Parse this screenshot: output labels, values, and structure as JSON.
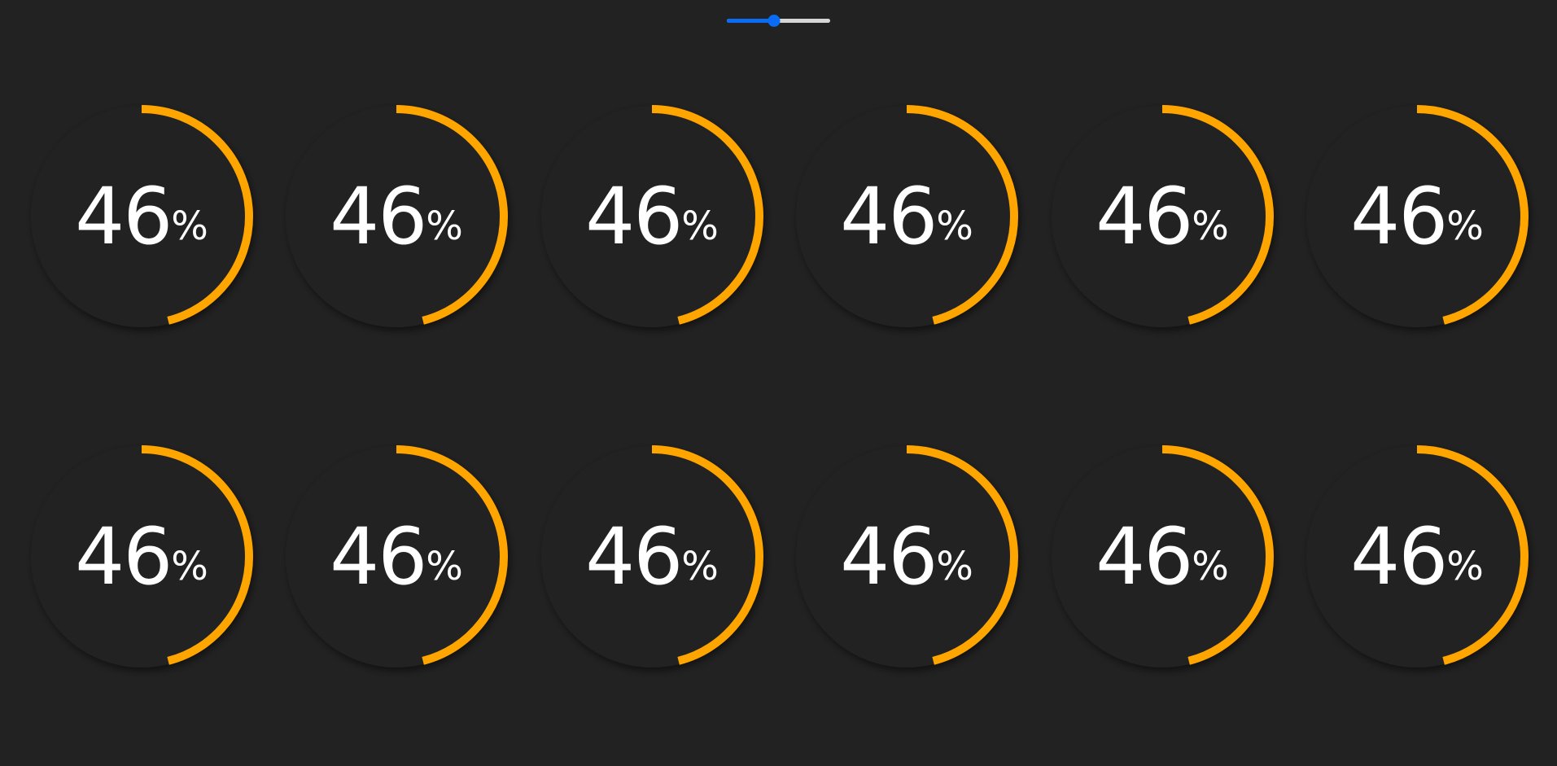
{
  "slider": {
    "value": 0.46
  },
  "colors": {
    "background": "#222222",
    "dial": "#222222",
    "arc": "#FFA500",
    "text": "#FFFFFF",
    "slider_fill": "#0A6CF5",
    "slider_track": "#D6D6D6"
  },
  "gauges": [
    {
      "value": 46,
      "value_text": "46",
      "unit": "%"
    },
    {
      "value": 46,
      "value_text": "46",
      "unit": "%"
    },
    {
      "value": 46,
      "value_text": "46",
      "unit": "%"
    },
    {
      "value": 46,
      "value_text": "46",
      "unit": "%"
    },
    {
      "value": 46,
      "value_text": "46",
      "unit": "%"
    },
    {
      "value": 46,
      "value_text": "46",
      "unit": "%"
    },
    {
      "value": 46,
      "value_text": "46",
      "unit": "%"
    },
    {
      "value": 46,
      "value_text": "46",
      "unit": "%"
    },
    {
      "value": 46,
      "value_text": "46",
      "unit": "%"
    },
    {
      "value": 46,
      "value_text": "46",
      "unit": "%"
    },
    {
      "value": 46,
      "value_text": "46",
      "unit": "%"
    },
    {
      "value": 46,
      "value_text": "46",
      "unit": "%"
    }
  ]
}
